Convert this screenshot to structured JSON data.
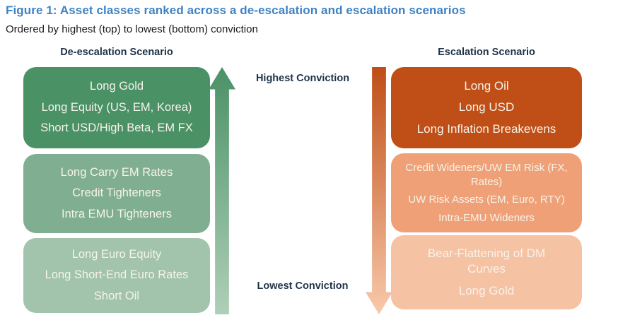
{
  "figure": {
    "title": "Figure 1: Asset classes ranked across a de-escalation and escalation scenarios",
    "subtitle": "Ordered by highest (top) to lowest (bottom) conviction"
  },
  "axis": {
    "highest_label": "Highest Conviction",
    "lowest_label": "Lowest Conviction"
  },
  "colors": {
    "title_blue": "#3E82C4",
    "header_text": "#1F3349",
    "box_text": "#F7F3EB",
    "green_dark": "#4A9166",
    "green_mid": "#7FAE90",
    "green_light": "#A2C3AC",
    "orange_dark": "#BF4E17",
    "orange_mid": "#EFA076",
    "orange_light": "#F5C2A3"
  },
  "left_column": {
    "header": "De-escalation Scenario",
    "tiers": [
      {
        "rank": "highest",
        "items": [
          "Long Gold",
          "Long Equity (US, EM, Korea)",
          "Short USD/High Beta, EM FX"
        ]
      },
      {
        "rank": "middle",
        "items": [
          "Long Carry EM Rates",
          "Credit Tighteners",
          "Intra EMU Tighteners"
        ]
      },
      {
        "rank": "lowest",
        "items": [
          "Long Euro Equity",
          "Long Short-End Euro Rates",
          "Short Oil"
        ]
      }
    ]
  },
  "right_column": {
    "header": "Escalation Scenario",
    "tiers": [
      {
        "rank": "highest",
        "items": [
          "Long Oil",
          "Long USD",
          "Long Inflation Breakevens"
        ]
      },
      {
        "rank": "middle",
        "items": [
          "Credit Wideners/UW EM Risk (FX, Rates)",
          "UW Risk Assets (EM, Euro, RTY)",
          "Intra-EMU Wideners"
        ]
      },
      {
        "rank": "lowest",
        "items": [
          "Bear-Flattening of DM Curves",
          "Long Gold"
        ]
      }
    ]
  }
}
